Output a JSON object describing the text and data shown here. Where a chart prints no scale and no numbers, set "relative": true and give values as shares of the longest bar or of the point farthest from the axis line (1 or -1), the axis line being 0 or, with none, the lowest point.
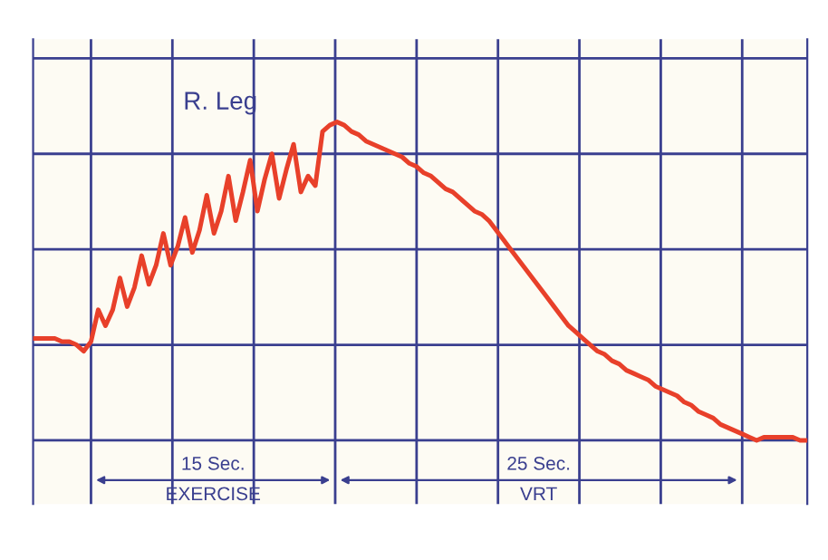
{
  "chart_data": {
    "type": "line",
    "relative": true,
    "grid": true,
    "marker": "none",
    "line_style": "solid",
    "categories": [
      null,
      null,
      null,
      null,
      null,
      null,
      null,
      null,
      null,
      null,
      null,
      null,
      null,
      null,
      null,
      null,
      null,
      null,
      null,
      null,
      null,
      null,
      null,
      null,
      null,
      null,
      null,
      null,
      null,
      null,
      null,
      null,
      null,
      null,
      null,
      null,
      null,
      null,
      null,
      null,
      null,
      null,
      null,
      null,
      null,
      null,
      null,
      null,
      null,
      null,
      null,
      null,
      null,
      null,
      null,
      null,
      null,
      null,
      null,
      null,
      null,
      null,
      null,
      null,
      null,
      null,
      null,
      null,
      null,
      null,
      null,
      null,
      null,
      null,
      null,
      null,
      null,
      null,
      null,
      null,
      null,
      null,
      null,
      null,
      null,
      null,
      null,
      null,
      null,
      null,
      null,
      null,
      null,
      null,
      null,
      null,
      null,
      null,
      null,
      null,
      null,
      null,
      null,
      null,
      null,
      null,
      null,
      null
    ],
    "annotations": [
      "R. Leg",
      "15 Sec.",
      "EXERCISE",
      "25 Sec.",
      "VRT"
    ],
    "series": [
      {
        "color": "#e8402a",
        "values": [
          0.32,
          0.32,
          0.32,
          0.32,
          0.31,
          0.31,
          0.3,
          0.28,
          0.31,
          0.41,
          0.36,
          0.41,
          0.51,
          0.42,
          0.48,
          0.58,
          0.49,
          0.55,
          0.65,
          0.55,
          0.61,
          0.7,
          0.59,
          0.66,
          0.77,
          0.65,
          0.72,
          0.83,
          0.69,
          0.78,
          0.88,
          0.72,
          0.82,
          0.9,
          0.76,
          0.85,
          0.93,
          0.78,
          0.83,
          0.8,
          0.97,
          0.99,
          1,
          0.99,
          0.97,
          0.96,
          0.94,
          0.93,
          0.92,
          0.91,
          0.9,
          0.89,
          0.87,
          0.86,
          0.84,
          0.83,
          0.81,
          0.79,
          0.78,
          0.76,
          0.74,
          0.72,
          0.71,
          0.69,
          0.66,
          0.63,
          0.6,
          0.57,
          0.54,
          0.51,
          0.48,
          0.45,
          0.42,
          0.39,
          0.36,
          0.34,
          0.32,
          0.3,
          0.28,
          0.27,
          0.25,
          0.24,
          0.22,
          0.21,
          0.2,
          0.19,
          0.17,
          0.16,
          0.15,
          0.14,
          0.12,
          0.11,
          0.09,
          0.08,
          0.07,
          0.05,
          0.04,
          0.03,
          0.02,
          0.01,
          0,
          0.01,
          0.01,
          0.01,
          0.01,
          0.01,
          0,
          0
        ]
      }
    ]
  }
}
